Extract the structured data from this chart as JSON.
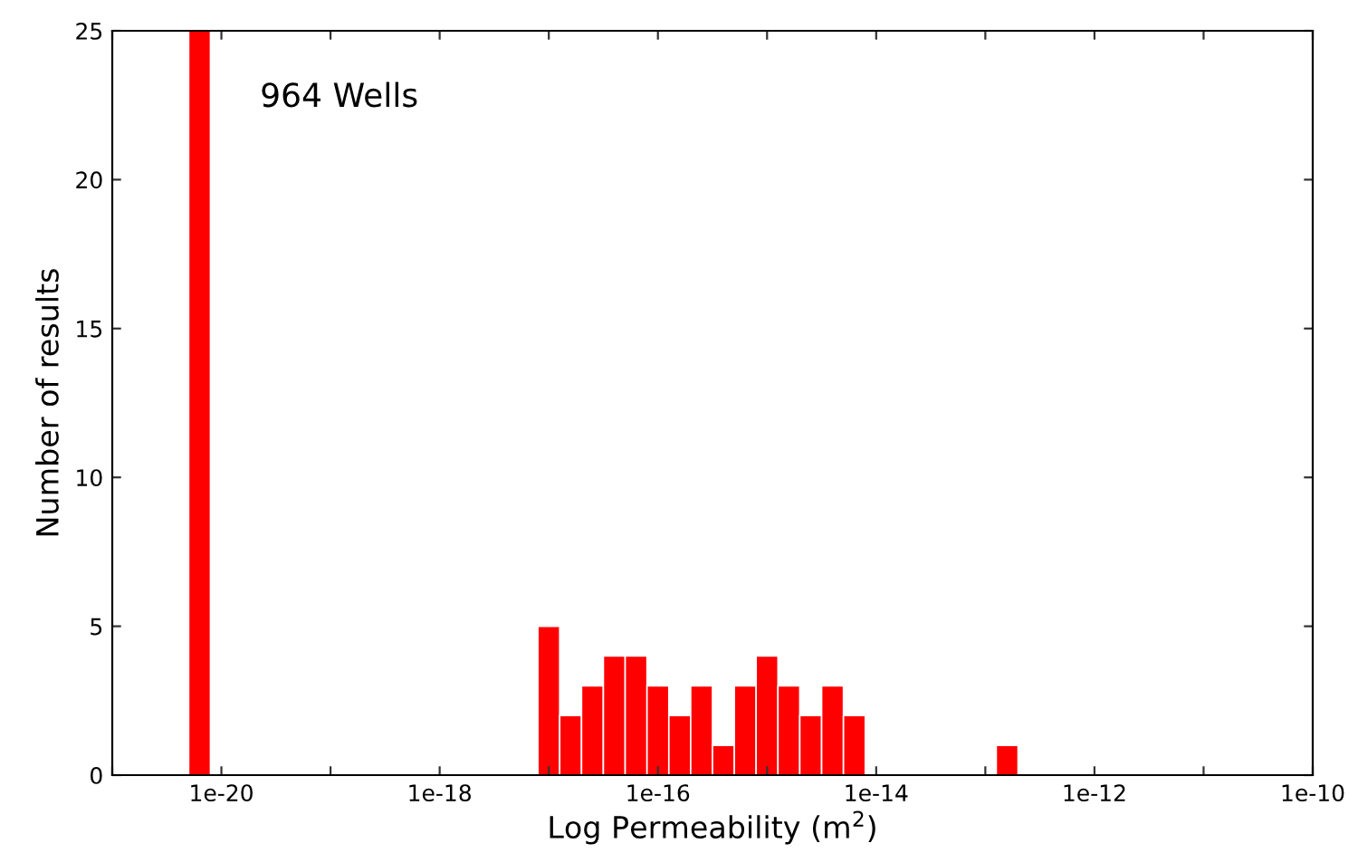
{
  "chart_data": {
    "type": "histogram",
    "xlabel": "Log Permeability (m$^{2}$)",
    "ylabel": "Number of results",
    "annotations": [
      "964 Wells"
    ],
    "log": "x",
    "color": "#ff0000",
    "bins": [
      5.012e-21,
      7.943e-21,
      1.259e-20,
      1.995e-20,
      3.162e-20,
      5.012e-20,
      7.943e-20,
      1.259e-19,
      1.995e-19,
      3.162e-19,
      5.012e-19,
      7.943e-19,
      1.259e-18,
      1.995e-18,
      3.162e-18,
      5.012e-18,
      7.943e-18,
      1.259e-17,
      1.995e-17,
      3.162e-17,
      5.012e-17,
      7.943e-17,
      1.259e-16,
      1.995e-16,
      3.162e-16,
      5.012e-16,
      7.943e-16,
      1.259e-15,
      1.995e-15,
      3.162e-15,
      5.012e-15,
      7.943e-15,
      1.259e-14,
      1.995e-14,
      3.162e-14,
      5.012e-14,
      7.943e-14,
      1.259e-13,
      1.995e-13
    ],
    "values": [
      25,
      0,
      0,
      0,
      0,
      0,
      0,
      0,
      0,
      0,
      0,
      0,
      0,
      0,
      0,
      0,
      5,
      2,
      3,
      4,
      4,
      3,
      2,
      3,
      1,
      3,
      4,
      3,
      2,
      3,
      2,
      0,
      0,
      0,
      0,
      0,
      0,
      1
    ],
    "xlim": [
      1e-21,
      1e-10
    ],
    "xticks": [
      {
        "value": 1e-21,
        "label": null
      },
      {
        "value": 1e-20,
        "label": "1e-20"
      },
      {
        "value": 1e-19,
        "label": null
      },
      {
        "value": 1e-18,
        "label": "1e-18"
      },
      {
        "value": 1e-17,
        "label": null
      },
      {
        "value": 1e-16,
        "label": "1e-16"
      },
      {
        "value": 1e-15,
        "label": null
      },
      {
        "value": 1e-14,
        "label": "1e-14"
      },
      {
        "value": 1e-13,
        "label": null
      },
      {
        "value": 1e-12,
        "label": "1e-12"
      },
      {
        "value": 1e-11,
        "label": null
      },
      {
        "value": 1e-10,
        "label": "1e-10"
      }
    ],
    "ylim": [
      0,
      25
    ],
    "yticks": [
      0,
      5,
      10,
      15,
      20,
      25
    ],
    "grid": false,
    "legend": false
  }
}
